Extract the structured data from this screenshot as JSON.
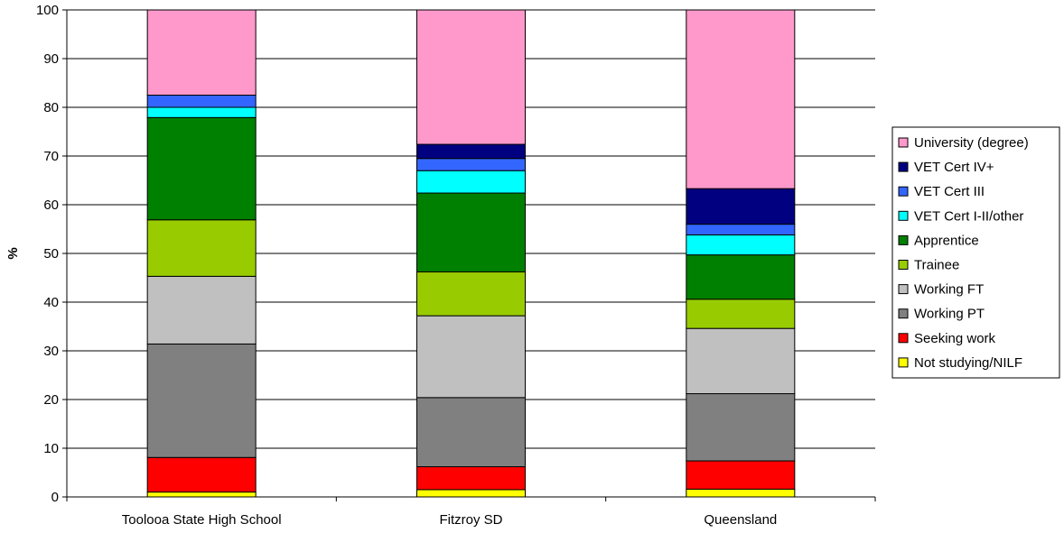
{
  "chart_data": {
    "type": "bar",
    "stacked": true,
    "title": "",
    "xlabel": "",
    "ylabel": "%",
    "ylim": [
      0,
      100
    ],
    "yticks": [
      0,
      10,
      20,
      30,
      40,
      50,
      60,
      70,
      80,
      90,
      100
    ],
    "grid": true,
    "legend_position": "right",
    "categories": [
      "Toolooa State High School",
      "Fitzroy SD",
      "Queensland"
    ],
    "series": [
      {
        "name": "Not studying/NILF",
        "color": "#FFFF00",
        "values": [
          1.0,
          1.5,
          1.6
        ]
      },
      {
        "name": "Seeking work",
        "color": "#FF0000",
        "values": [
          7.1,
          4.7,
          5.8
        ]
      },
      {
        "name": "Working PT",
        "color": "#808080",
        "values": [
          23.3,
          14.2,
          13.8
        ]
      },
      {
        "name": "Working FT",
        "color": "#C0C0C0",
        "values": [
          13.9,
          16.8,
          13.4
        ]
      },
      {
        "name": "Trainee",
        "color": "#99CC00",
        "values": [
          11.6,
          9.0,
          6.0
        ]
      },
      {
        "name": "Apprentice",
        "color": "#008000",
        "values": [
          21.0,
          16.2,
          9.1
        ]
      },
      {
        "name": "VET Cert I-II/other",
        "color": "#00FFFF",
        "values": [
          2.1,
          4.6,
          4.1
        ]
      },
      {
        "name": "VET Cert III",
        "color": "#3366FF",
        "values": [
          2.5,
          2.5,
          2.2
        ]
      },
      {
        "name": "VET Cert IV+",
        "color": "#000080",
        "values": [
          0,
          2.9,
          7.3
        ]
      },
      {
        "name": "University (degree)",
        "color": "#FF99CC",
        "values": [
          17.5,
          27.6,
          36.7
        ]
      }
    ]
  }
}
